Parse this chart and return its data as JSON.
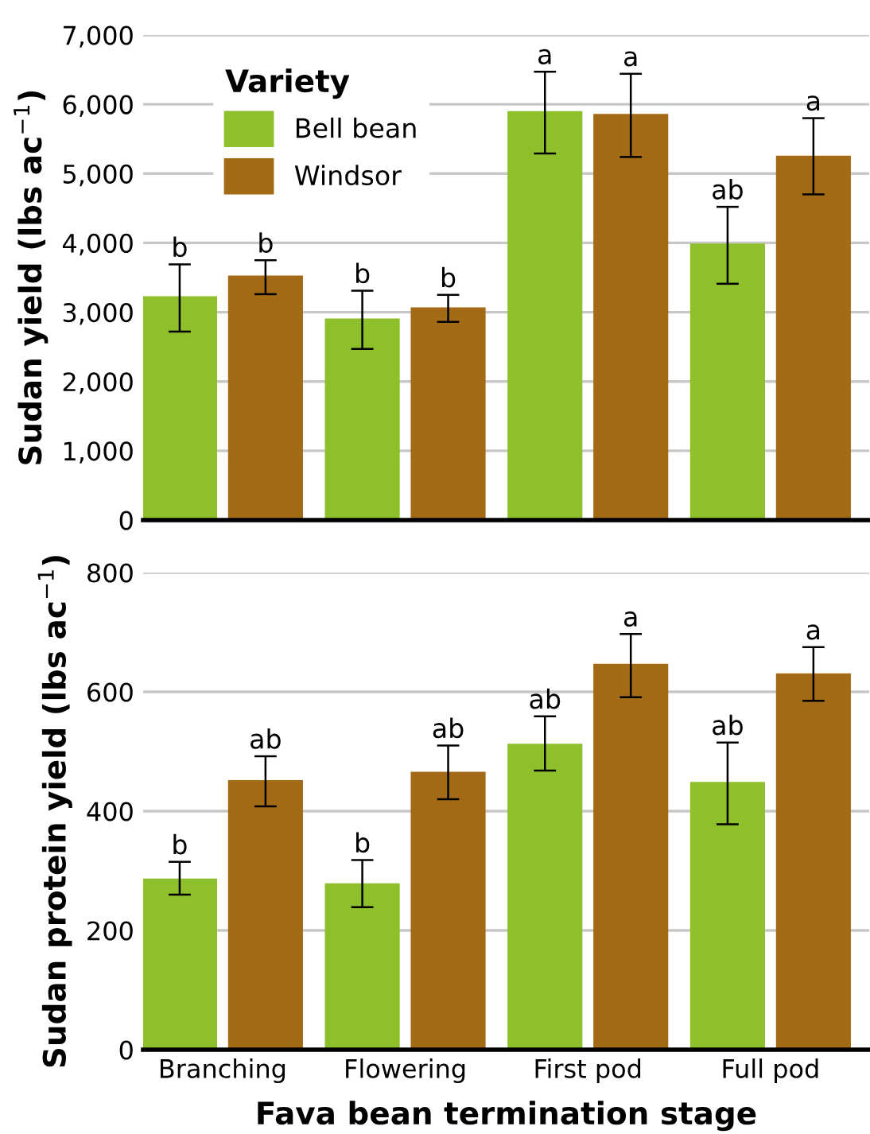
{
  "chart_data": [
    {
      "type": "bar",
      "ylabel": "Sudan yield (lbs ac$^{−1}$)",
      "legend_title": "Variety",
      "legend": "top left",
      "grid": "y",
      "tick_labels": "y",
      "categories": [
        null,
        null,
        null,
        null
      ],
      "ylim": [
        0,
        7000
      ],
      "yticks": [
        {
          "value": 0,
          "label": "0"
        },
        {
          "value": 1000,
          "label": "1,000"
        },
        {
          "value": 2000,
          "label": "2,000"
        },
        {
          "value": 3000,
          "label": "3,000"
        },
        {
          "value": 4000,
          "label": "4,000"
        },
        {
          "value": 5000,
          "label": "5,000"
        },
        {
          "value": 6000,
          "label": "6,000"
        },
        {
          "value": 7000,
          "label": "7,000"
        }
      ],
      "series": [
        {
          "name": "Bell bean",
          "color": "#8dc02b",
          "values": [
            3230,
            2910,
            5900,
            3990
          ],
          "errors": [
            [
              2720,
              3690
            ],
            [
              2470,
              3310
            ],
            [
              5290,
              6470
            ],
            [
              3410,
              4520
            ]
          ],
          "value_labels": [
            "b",
            "b",
            "a",
            "ab"
          ]
        },
        {
          "name": "Windsor",
          "color": "#a46b16",
          "values": [
            3530,
            3070,
            5860,
            5260
          ],
          "errors": [
            [
              3260,
              3750
            ],
            [
              2860,
              3250
            ],
            [
              5240,
              6440
            ],
            [
              4700,
              5800
            ]
          ],
          "value_labels": [
            "b",
            "b",
            "a",
            "a"
          ]
        }
      ]
    },
    {
      "type": "bar",
      "ylabel": "Sudan protein yield (lbs ac$^{−1}$)",
      "xlabel": "Fava bean termination stage",
      "grid": "y",
      "categories": [
        "Branching",
        "Flowering",
        "First pod",
        "Full pod"
      ],
      "ylim": [
        0,
        800
      ],
      "yticks": [
        0,
        200,
        400,
        600,
        800
      ],
      "series": [
        {
          "color": "#8dc02b",
          "values": [
            287,
            279,
            513,
            449
          ],
          "errors": [
            [
              260,
              315
            ],
            [
              239,
              318
            ],
            [
              468,
              559
            ],
            [
              378,
              515
            ]
          ],
          "value_labels": [
            "b",
            "b",
            "ab",
            "ab"
          ]
        },
        {
          "color": "#a46b16",
          "values": [
            452,
            466,
            647,
            631
          ],
          "errors": [
            [
              408,
              492
            ],
            [
              420,
              510
            ],
            [
              591,
              697
            ],
            [
              585,
              675
            ]
          ],
          "value_labels": [
            "ab",
            "ab",
            "a",
            "a"
          ]
        }
      ]
    }
  ]
}
